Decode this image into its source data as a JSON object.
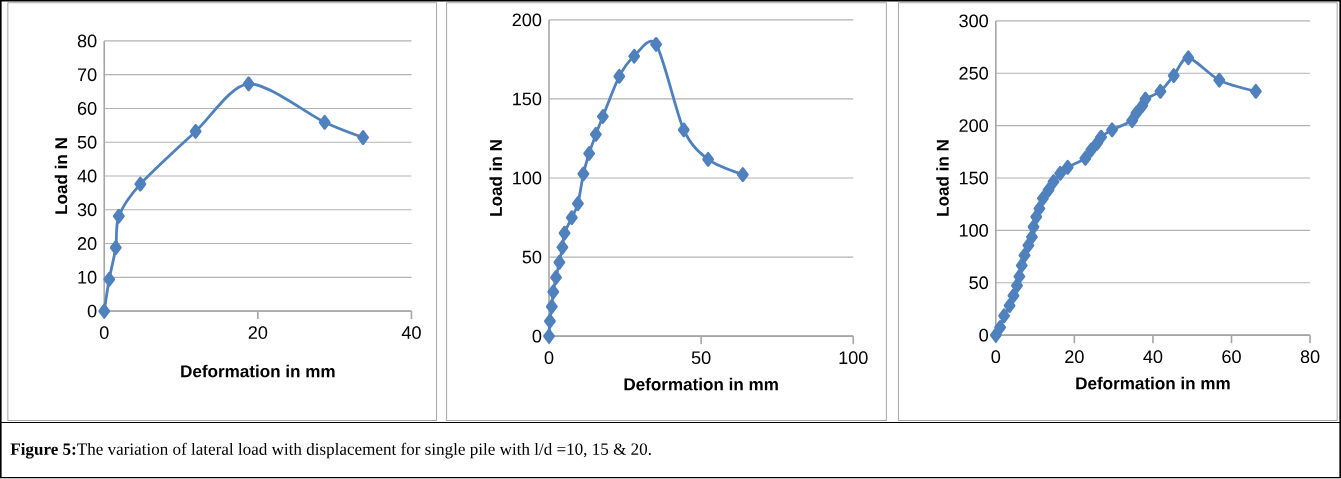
{
  "chart_data": [
    {
      "type": "line",
      "xlabel": "Deformation in mm",
      "ylabel": "Load in N",
      "color": "#4f81bd",
      "marker": "diamond",
      "grid": "y",
      "x": [
        0,
        0.65,
        1.5,
        1.9,
        4.7,
        11.9,
        18.8,
        28.7,
        33.7
      ],
      "values": [
        0,
        9.4,
        18.8,
        28.1,
        37.6,
        53.2,
        67.3,
        55.9,
        51.4
      ],
      "xlim": [
        0,
        40
      ],
      "xticks": [
        0,
        20,
        40
      ],
      "ylim": [
        0,
        80
      ],
      "yticks": [
        0,
        10,
        20,
        30,
        40,
        50,
        60,
        70,
        80
      ],
      "annotations": [
        "**Figure 5:**The variation of lateral load with displacement for single pile with l/d =10, 15 & 20."
      ]
    },
    {
      "type": "line",
      "xlabel": "Deformation in mm",
      "ylabel": "Load in N",
      "color": "#4f81bd",
      "marker": "diamond",
      "grid": "y",
      "x": [
        0,
        0.3,
        0.9,
        1.4,
        2.3,
        3.4,
        4.4,
        5.1,
        7.5,
        9.5,
        11.3,
        13.2,
        15.4,
        17.7,
        23.1,
        28,
        35.2,
        44.3,
        52.3,
        63.7
      ],
      "values": [
        0,
        9.5,
        18.7,
        28,
        37.1,
        46.7,
        56.2,
        65.1,
        74.9,
        83.8,
        102.6,
        115.5,
        127.6,
        138.9,
        164.3,
        177,
        184.5,
        130.4,
        111.8,
        102.2
      ],
      "xlim": [
        0,
        100
      ],
      "xticks": [
        0,
        50,
        100
      ],
      "ylim": [
        0,
        200
      ],
      "yticks": [
        0,
        50,
        100,
        150,
        200
      ]
    },
    {
      "type": "line",
      "xlabel": "Deformation in mm",
      "ylabel": "Load in N",
      "color": "#4f81bd",
      "marker": "diamond",
      "grid": "y",
      "x": [
        0,
        1.1,
        2.1,
        3.5,
        4.5,
        5.4,
        6,
        6.6,
        7.3,
        8.3,
        9.2,
        9.6,
        10.3,
        11.1,
        12,
        13.4,
        14.7,
        16.4,
        18.3,
        22.8,
        24.3,
        25.8,
        26.8,
        29.6,
        34.7,
        35.8,
        37.3,
        38.1,
        41.9,
        45.3,
        49,
        56.9,
        66.2
      ],
      "values": [
        0,
        7.4,
        18.5,
        28.1,
        37.7,
        47.3,
        56,
        66.5,
        76.1,
        85.7,
        93.7,
        103.3,
        112.9,
        120.9,
        130.5,
        138.5,
        146.5,
        154.5,
        160.2,
        168.8,
        176.8,
        183.2,
        189,
        196,
        204.7,
        212,
        219,
        225.4,
        232.8,
        247.8,
        264.8,
        243.4,
        232.8
      ],
      "xlim": [
        0,
        80
      ],
      "xticks": [
        0,
        20,
        40,
        60,
        80
      ],
      "ylim": [
        0,
        300
      ],
      "yticks": [
        0,
        50,
        100,
        150,
        200,
        250,
        300
      ]
    }
  ]
}
